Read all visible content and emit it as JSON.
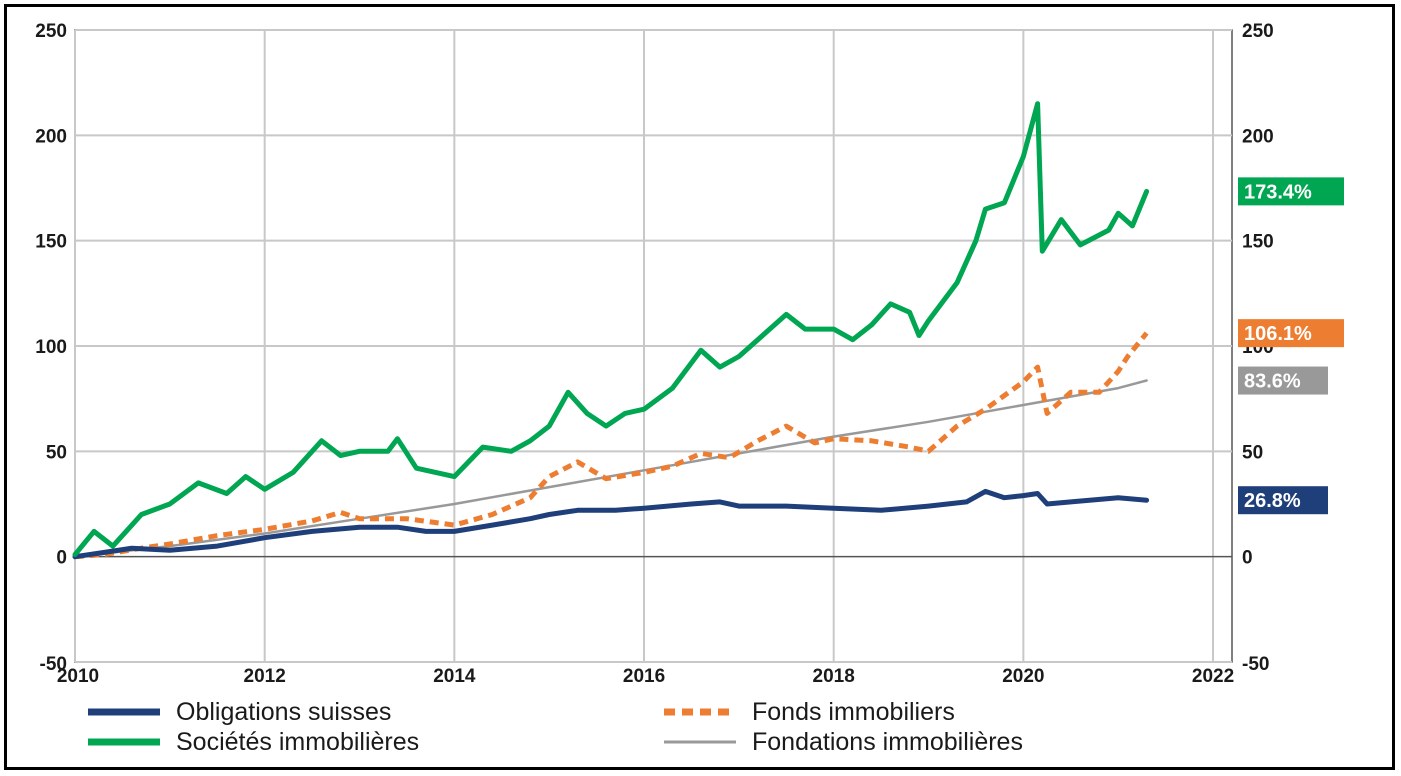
{
  "chart_data": {
    "type": "line",
    "title": "",
    "xlabel": "",
    "ylabel": "",
    "xlim": [
      2010,
      2022.2
    ],
    "ylim": [
      -50,
      250
    ],
    "x_ticks": [
      2010,
      2012,
      2014,
      2016,
      2018,
      2020,
      2022
    ],
    "x_tick_labels": [
      "2010",
      "2012",
      "2014",
      "2016",
      "2018",
      "2020",
      "2022"
    ],
    "y_ticks": [
      -50,
      0,
      50,
      100,
      150,
      200,
      250
    ],
    "y_tick_labels": [
      "-50",
      "0",
      "50",
      "100",
      "150",
      "200",
      "250"
    ],
    "grid": true,
    "legend_position": "bottom",
    "series": [
      {
        "name": "Obligations suisses",
        "color": "#1f3f7a",
        "style": "thick-solid",
        "end_label": "26.8%",
        "points": [
          [
            2010,
            0
          ],
          [
            2010.3,
            2
          ],
          [
            2010.6,
            4
          ],
          [
            2011,
            3
          ],
          [
            2011.5,
            5
          ],
          [
            2012,
            9
          ],
          [
            2012.5,
            12
          ],
          [
            2013,
            14
          ],
          [
            2013.4,
            14
          ],
          [
            2013.7,
            12
          ],
          [
            2014,
            12
          ],
          [
            2014.4,
            15
          ],
          [
            2014.8,
            18
          ],
          [
            2015,
            20
          ],
          [
            2015.3,
            22
          ],
          [
            2015.7,
            22
          ],
          [
            2016,
            23
          ],
          [
            2016.5,
            25
          ],
          [
            2016.8,
            26
          ],
          [
            2017,
            24
          ],
          [
            2017.5,
            24
          ],
          [
            2018,
            23
          ],
          [
            2018.5,
            22
          ],
          [
            2019,
            24
          ],
          [
            2019.4,
            26
          ],
          [
            2019.6,
            31
          ],
          [
            2019.8,
            28
          ],
          [
            2020,
            29
          ],
          [
            2020.15,
            30
          ],
          [
            2020.25,
            25
          ],
          [
            2020.5,
            26
          ],
          [
            2021,
            28
          ],
          [
            2021.3,
            26.8
          ]
        ]
      },
      {
        "name": "Fonds immobiliers",
        "color": "#ed7d31",
        "style": "dashed",
        "end_label": "106.1%",
        "points": [
          [
            2010,
            0
          ],
          [
            2010.3,
            1
          ],
          [
            2010.7,
            4
          ],
          [
            2011,
            6
          ],
          [
            2011.5,
            10
          ],
          [
            2012,
            13
          ],
          [
            2012.5,
            17
          ],
          [
            2012.8,
            21
          ],
          [
            2013,
            18
          ],
          [
            2013.5,
            18
          ],
          [
            2014,
            15
          ],
          [
            2014.4,
            20
          ],
          [
            2014.8,
            28
          ],
          [
            2015,
            38
          ],
          [
            2015.3,
            45
          ],
          [
            2015.6,
            37
          ],
          [
            2016,
            40
          ],
          [
            2016.3,
            43
          ],
          [
            2016.6,
            49
          ],
          [
            2016.9,
            47
          ],
          [
            2017.2,
            55
          ],
          [
            2017.5,
            62
          ],
          [
            2017.8,
            54
          ],
          [
            2018,
            56
          ],
          [
            2018.4,
            55
          ],
          [
            2018.8,
            52
          ],
          [
            2019,
            50
          ],
          [
            2019.3,
            62
          ],
          [
            2019.6,
            70
          ],
          [
            2020,
            83
          ],
          [
            2020.15,
            90
          ],
          [
            2020.25,
            68
          ],
          [
            2020.5,
            78
          ],
          [
            2020.8,
            78
          ],
          [
            2021,
            88
          ],
          [
            2021.1,
            95
          ],
          [
            2021.3,
            106.1
          ]
        ]
      },
      {
        "name": "Sociétés immobilières",
        "color": "#00a651",
        "style": "thick-solid",
        "end_label": "173.4%",
        "points": [
          [
            2010,
            1
          ],
          [
            2010.2,
            12
          ],
          [
            2010.4,
            5
          ],
          [
            2010.7,
            20
          ],
          [
            2011,
            25
          ],
          [
            2011.3,
            35
          ],
          [
            2011.6,
            30
          ],
          [
            2011.8,
            38
          ],
          [
            2012,
            32
          ],
          [
            2012.3,
            40
          ],
          [
            2012.6,
            55
          ],
          [
            2012.8,
            48
          ],
          [
            2013,
            50
          ],
          [
            2013.3,
            50
          ],
          [
            2013.4,
            56
          ],
          [
            2013.6,
            42
          ],
          [
            2014,
            38
          ],
          [
            2014.3,
            52
          ],
          [
            2014.6,
            50
          ],
          [
            2014.8,
            55
          ],
          [
            2015,
            62
          ],
          [
            2015.2,
            78
          ],
          [
            2015.4,
            68
          ],
          [
            2015.6,
            62
          ],
          [
            2015.8,
            68
          ],
          [
            2016,
            70
          ],
          [
            2016.3,
            80
          ],
          [
            2016.6,
            98
          ],
          [
            2016.8,
            90
          ],
          [
            2017,
            95
          ],
          [
            2017.3,
            107
          ],
          [
            2017.5,
            115
          ],
          [
            2017.7,
            108
          ],
          [
            2018,
            108
          ],
          [
            2018.2,
            103
          ],
          [
            2018.4,
            110
          ],
          [
            2018.6,
            120
          ],
          [
            2018.8,
            116
          ],
          [
            2018.9,
            105
          ],
          [
            2019,
            112
          ],
          [
            2019.3,
            130
          ],
          [
            2019.5,
            150
          ],
          [
            2019.6,
            165
          ],
          [
            2019.8,
            168
          ],
          [
            2020,
            190
          ],
          [
            2020.15,
            215
          ],
          [
            2020.2,
            145
          ],
          [
            2020.4,
            160
          ],
          [
            2020.6,
            148
          ],
          [
            2020.9,
            155
          ],
          [
            2021,
            163
          ],
          [
            2021.15,
            157
          ],
          [
            2021.3,
            173.4
          ]
        ]
      },
      {
        "name": "Fondations immobilières",
        "color": "#999999",
        "style": "thin-solid",
        "end_label": "83.6%",
        "points": [
          [
            2010,
            0
          ],
          [
            2011,
            5
          ],
          [
            2012,
            11
          ],
          [
            2013,
            18
          ],
          [
            2014,
            25
          ],
          [
            2015,
            33
          ],
          [
            2016,
            41
          ],
          [
            2017,
            49
          ],
          [
            2018,
            57
          ],
          [
            2019,
            64
          ],
          [
            2020,
            72
          ],
          [
            2021,
            80
          ],
          [
            2021.3,
            83.6
          ]
        ]
      }
    ]
  }
}
